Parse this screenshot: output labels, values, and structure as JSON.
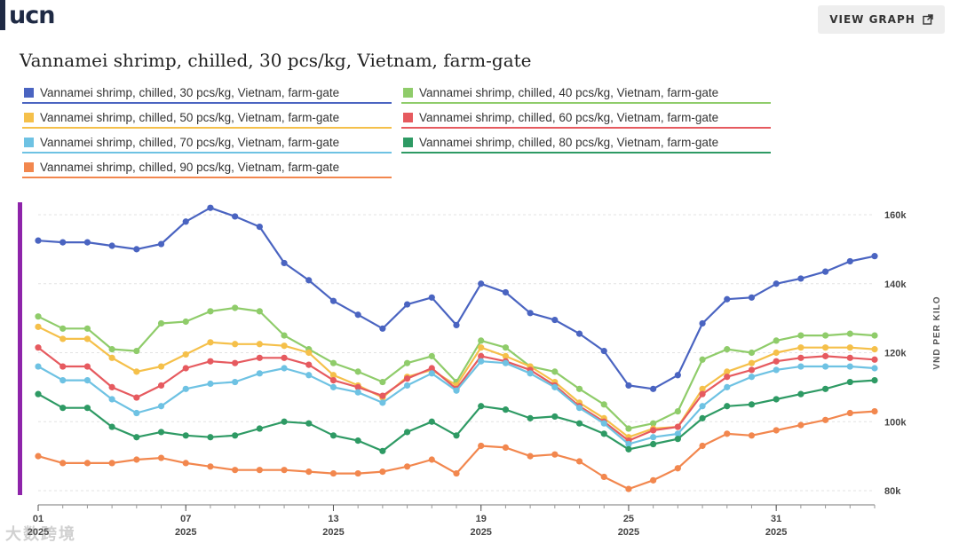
{
  "header": {
    "logo_text": "ucn",
    "view_button_label": "VIEW GRAPH"
  },
  "watermark_text": "大数跨境",
  "chart_data": {
    "type": "line",
    "title": "Vannamei shrimp, chilled, 30 pcs/kg, Vietnam, farm-gate",
    "xlabel": "",
    "ylabel": "VND PER KILO",
    "ylim": [
      80000,
      160000
    ],
    "y_ticks": [
      80000,
      100000,
      120000,
      140000,
      160000
    ],
    "y_tick_labels": [
      "80k",
      "100k",
      "120k",
      "140k",
      "160k"
    ],
    "x_week_range": [
      1,
      35
    ],
    "x_ticks": [
      {
        "week": 1,
        "label": "01",
        "year": "2025"
      },
      {
        "week": 7,
        "label": "07",
        "year": "2025"
      },
      {
        "week": 13,
        "label": "13",
        "year": "2025"
      },
      {
        "week": 19,
        "label": "19",
        "year": "2025"
      },
      {
        "week": 25,
        "label": "25",
        "year": "2025"
      },
      {
        "week": 31,
        "label": "31",
        "year": "2025"
      }
    ],
    "weeks": [
      1,
      2,
      3,
      4,
      5,
      6,
      7,
      8,
      9,
      10,
      11,
      12,
      13,
      14,
      15,
      16,
      17,
      18,
      19,
      20,
      21,
      22,
      23,
      24,
      25,
      26,
      27,
      28,
      29,
      30,
      31,
      32,
      33,
      34,
      35
    ],
    "series": [
      {
        "name": "Vannamei shrimp, chilled, 30 pcs/kg, Vietnam, farm-gate",
        "color": "#4a64c1",
        "values": [
          152500,
          152000,
          152000,
          151000,
          150000,
          151500,
          158000,
          162000,
          159500,
          156500,
          146000,
          141000,
          135000,
          131000,
          127000,
          134000,
          136000,
          128000,
          140000,
          137500,
          131500,
          129500,
          125500,
          120500,
          110500,
          109500,
          113500,
          128500,
          135500,
          136000,
          140000,
          141500,
          143500,
          146500,
          148000
        ]
      },
      {
        "name": "Vannamei shrimp, chilled, 40 pcs/kg, Vietnam, farm-gate",
        "color": "#8fcc6a",
        "values": [
          130500,
          127000,
          127000,
          121000,
          120500,
          128500,
          129000,
          132000,
          133000,
          132000,
          125000,
          121000,
          117000,
          114500,
          111500,
          117000,
          119000,
          111500,
          123500,
          121500,
          116000,
          114500,
          109500,
          105000,
          98000,
          99500,
          103000,
          118000,
          121000,
          120000,
          123500,
          125000,
          125000,
          125500,
          125000
        ]
      },
      {
        "name": "Vannamei shrimp, chilled, 50 pcs/kg, Vietnam, farm-gate",
        "color": "#f5c04a",
        "values": [
          127500,
          124000,
          124000,
          118500,
          114500,
          116000,
          119500,
          123000,
          122500,
          122500,
          122000,
          120000,
          113500,
          110500,
          107000,
          113000,
          115000,
          110500,
          121500,
          119000,
          116000,
          111500,
          105500,
          101000,
          95500,
          98000,
          98500,
          109500,
          114500,
          117000,
          120000,
          121500,
          121500,
          121500,
          121000
        ]
      },
      {
        "name": "Vannamei shrimp, chilled, 60 pcs/kg, Vietnam, farm-gate",
        "color": "#e65a5f",
        "values": [
          121500,
          116000,
          116000,
          110000,
          107000,
          110500,
          115500,
          117500,
          117000,
          118500,
          118500,
          116500,
          112000,
          110000,
          107500,
          112500,
          115500,
          109500,
          119000,
          117500,
          115000,
          110500,
          104500,
          100000,
          94500,
          97500,
          98500,
          108000,
          113000,
          115000,
          117500,
          118500,
          119000,
          118500,
          118000
        ]
      },
      {
        "name": "Vannamei shrimp, chilled, 70 pcs/kg, Vietnam, farm-gate",
        "color": "#6ec2e3",
        "values": [
          116000,
          112000,
          112000,
          106500,
          102500,
          104500,
          109500,
          111000,
          111500,
          114000,
          115500,
          113500,
          110000,
          108500,
          105500,
          110500,
          114000,
          109000,
          117500,
          117000,
          114000,
          110000,
          104000,
          99500,
          93500,
          95500,
          96500,
          104500,
          110000,
          113000,
          115000,
          116000,
          116000,
          116000,
          115500
        ]
      },
      {
        "name": "Vannamei shrimp, chilled, 80 pcs/kg, Vietnam, farm-gate",
        "color": "#2e9a64",
        "values": [
          108000,
          104000,
          104000,
          98500,
          95500,
          97000,
          96000,
          95500,
          96000,
          98000,
          100000,
          99500,
          96000,
          94500,
          91500,
          97000,
          100000,
          96000,
          104500,
          103500,
          101000,
          101500,
          99500,
          96500,
          92000,
          93500,
          95000,
          101000,
          104500,
          105000,
          106500,
          108000,
          109500,
          111500,
          112000
        ]
      },
      {
        "name": "Vannamei shrimp, chilled, 90 pcs/kg, Vietnam, farm-gate",
        "color": "#f2874e",
        "values": [
          90000,
          88000,
          88000,
          88000,
          89000,
          89500,
          88000,
          87000,
          86000,
          86000,
          86000,
          85500,
          85000,
          85000,
          85500,
          87000,
          89000,
          85000,
          93000,
          92500,
          90000,
          90500,
          88500,
          84000,
          80500,
          83000,
          86500,
          93000,
          96500,
          96000,
          97500,
          99000,
          100500,
          102500,
          103000
        ]
      }
    ]
  }
}
